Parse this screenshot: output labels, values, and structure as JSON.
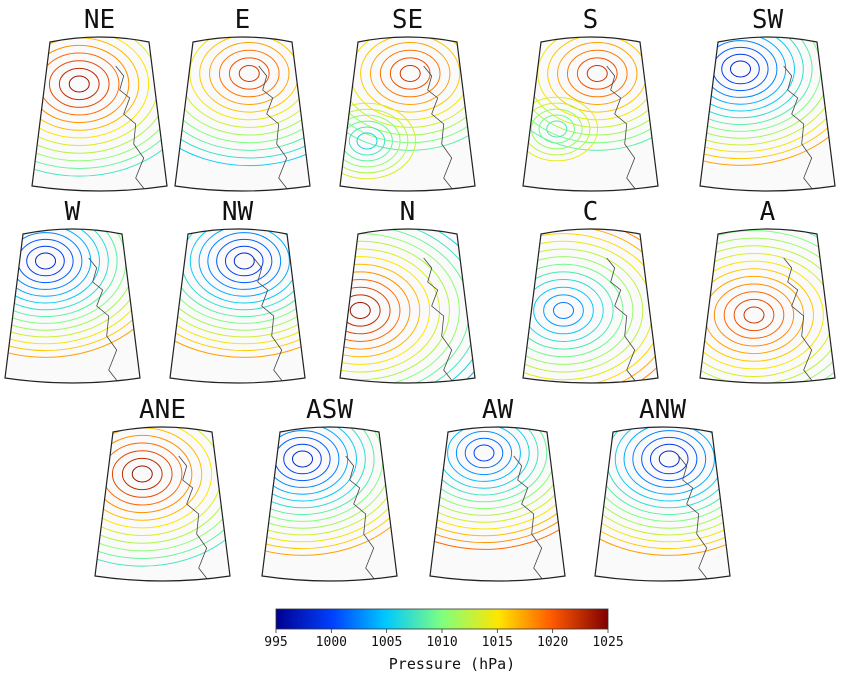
{
  "panels": [
    {
      "label": "NE",
      "pattern": "high_nw"
    },
    {
      "label": "E",
      "pattern": "high_n"
    },
    {
      "label": "SE",
      "pattern": "high_ne_low_sw"
    },
    {
      "label": "S",
      "pattern": "high_ne_low_w"
    },
    {
      "label": "SW",
      "pattern": "low_nw_high_s"
    },
    {
      "label": "W",
      "pattern": "low_nw_high_s"
    },
    {
      "label": "NW",
      "pattern": "low_ne_high_sw"
    },
    {
      "label": "N",
      "pattern": "high_w"
    },
    {
      "label": "C",
      "pattern": "low_center"
    },
    {
      "label": "A",
      "pattern": "high_center"
    },
    {
      "label": "ANE",
      "pattern": "high_nw"
    },
    {
      "label": "ASW",
      "pattern": "low_nw_high_s"
    },
    {
      "label": "AW",
      "pattern": "low_n_high_s"
    },
    {
      "label": "ANW",
      "pattern": "low_ne_high_sw"
    }
  ],
  "colorbar": {
    "title": "Pressure (hPa)",
    "ticks": [
      "995",
      "1000",
      "1005",
      "1010",
      "1015",
      "1020",
      "1025"
    ],
    "min": 995,
    "max": 1025,
    "colors": [
      "#00008f",
      "#0040ff",
      "#00c8ff",
      "#7fff7f",
      "#ffe600",
      "#ff5a00",
      "#800000"
    ]
  }
}
